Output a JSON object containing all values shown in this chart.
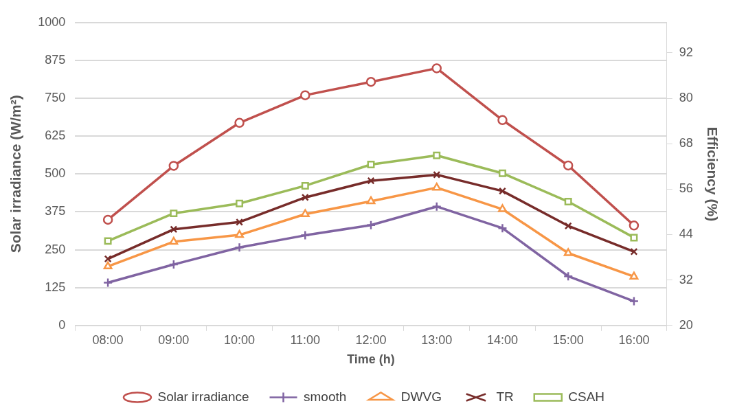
{
  "chart_data": {
    "type": "line",
    "xlabel": "Time (h)",
    "ylabel": "Solar irradiance (W/m²)",
    "y2label": "Efficiency (%)",
    "categories": [
      "08:00",
      "09:00",
      "10:00",
      "11:00",
      "12:00",
      "13:00",
      "14:00",
      "15:00",
      "16:00"
    ],
    "series": [
      {
        "name": "Solar irradiance",
        "color": "#c0504d",
        "marker": "circle",
        "values": [
          349,
          527,
          669,
          760,
          804,
          849,
          678,
          528,
          330
        ]
      },
      {
        "name": "smooth",
        "color": "#8064a2",
        "marker": "cross",
        "axis": "y2",
        "values": [
          31.3,
          36.1,
          40.6,
          43.8,
          46.5,
          51.4,
          45.7,
          33.0,
          26.4
        ]
      },
      {
        "name": "DWVG",
        "color": "#f79646",
        "marker": "triangle",
        "axis": "y2",
        "values": [
          35.6,
          42.1,
          43.9,
          49.4,
          52.8,
          56.4,
          50.7,
          39.1,
          32.9
        ]
      },
      {
        "name": "TR",
        "color": "#772c2a",
        "marker": "x",
        "axis": "y2",
        "values": [
          37.6,
          45.4,
          47.3,
          53.8,
          58.2,
          59.8,
          55.5,
          46.3,
          39.5
        ]
      },
      {
        "name": "CSAH",
        "color": "#9bbb59",
        "marker": "square",
        "axis": "y2",
        "values": [
          42.3,
          49.6,
          52.2,
          56.9,
          62.5,
          64.9,
          60.2,
          52.7,
          43.2
        ]
      }
    ],
    "ylim": [
      0,
      1000
    ],
    "yticks": [
      0,
      125,
      250,
      375,
      500,
      625,
      750,
      875,
      1000
    ],
    "y2lim": [
      20,
      100
    ],
    "y2ticks": [
      20,
      32,
      44,
      56,
      68,
      80,
      92
    ],
    "grid": "y",
    "legend": "bottom",
    "line_style": "solid"
  }
}
